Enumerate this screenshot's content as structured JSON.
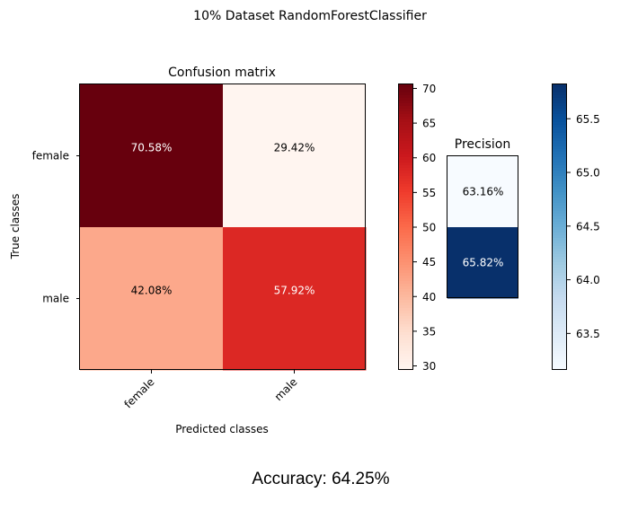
{
  "figure_title": "10% Dataset RandomForestClassifier",
  "accuracy_text": "Accuracy: 64.25%",
  "chart_data": [
    {
      "type": "heatmap",
      "title": "Confusion matrix",
      "xlabel": "Predicted classes",
      "ylabel": "True classes",
      "x_categories": [
        "female",
        "male"
      ],
      "y_categories": [
        "female",
        "male"
      ],
      "values": [
        [
          70.58,
          29.42
        ],
        [
          42.08,
          57.92
        ]
      ],
      "cell_labels": [
        [
          "70.58%",
          "29.42%"
        ],
        [
          "42.08%",
          "57.92%"
        ]
      ],
      "colormap": "Reds",
      "colorbar": {
        "range": [
          29.42,
          70.58
        ],
        "ticks": [
          "30",
          "35",
          "40",
          "45",
          "50",
          "55",
          "60",
          "65",
          "70"
        ]
      }
    },
    {
      "type": "heatmap",
      "title": "Precision",
      "values": [
        [
          63.16
        ],
        [
          65.82
        ]
      ],
      "cell_labels": [
        [
          "63.16%"
        ],
        [
          "65.82%"
        ]
      ],
      "colormap": "Blues",
      "colorbar": {
        "range": [
          63.16,
          65.82
        ],
        "ticks": [
          "63.5",
          "64.0",
          "64.5",
          "65.0",
          "65.5"
        ]
      }
    }
  ]
}
